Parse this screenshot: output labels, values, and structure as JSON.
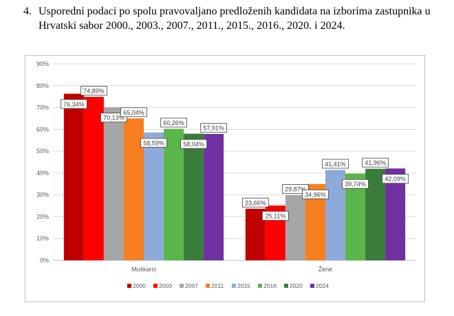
{
  "heading": {
    "number": "4.",
    "text": "Usporedni podaci po spolu pravovaljano predloženih kandidata na izborima zastupnika u Hrvatski sabor 2000., 2003., 2007., 2011., 2015., 2016., 2020. i 2024."
  },
  "chart_data": {
    "type": "bar",
    "title": "",
    "xlabel": "",
    "ylabel": "",
    "ylim": [
      0,
      90
    ],
    "y_ticks": [
      "0%",
      "10%",
      "20%",
      "30%",
      "40%",
      "50%",
      "60%",
      "70%",
      "80%",
      "90%"
    ],
    "y_tick_values": [
      0,
      10,
      20,
      30,
      40,
      50,
      60,
      70,
      80,
      90
    ],
    "grid": true,
    "legend_position": "bottom",
    "categories": [
      "Muškarci",
      "Žene"
    ],
    "series": [
      {
        "name": "2000",
        "color": "#c00000",
        "values": [
          76.34,
          23.66
        ],
        "labels": [
          "76,34%",
          "23,66%"
        ]
      },
      {
        "name": "2003",
        "color": "#ff0000",
        "values": [
          74.89,
          25.11
        ],
        "labels": [
          "74,89%",
          "25,11%"
        ]
      },
      {
        "name": "2007",
        "color": "#a6a6a6",
        "values": [
          70.13,
          29.87
        ],
        "labels": [
          "70,13%",
          "29,87%"
        ]
      },
      {
        "name": "2011",
        "color": "#f77f20",
        "values": [
          65.04,
          34.96
        ],
        "labels": [
          "65,04%",
          "34,96%"
        ]
      },
      {
        "name": "2015",
        "color": "#8eaadb",
        "values": [
          58.59,
          41.41
        ],
        "labels": [
          "58,59%",
          "41,41%"
        ]
      },
      {
        "name": "2016",
        "color": "#5bb64a",
        "values": [
          60.26,
          39.74
        ],
        "labels": [
          "60,26%",
          "39,74%"
        ]
      },
      {
        "name": "2020",
        "color": "#3a7d3a",
        "values": [
          58.04,
          41.96
        ],
        "labels": [
          "58,04%",
          "41,96%"
        ]
      },
      {
        "name": "2024",
        "color": "#7030a0",
        "values": [
          57.91,
          42.09
        ],
        "labels": [
          "57,91%",
          "42,09%"
        ]
      }
    ]
  }
}
